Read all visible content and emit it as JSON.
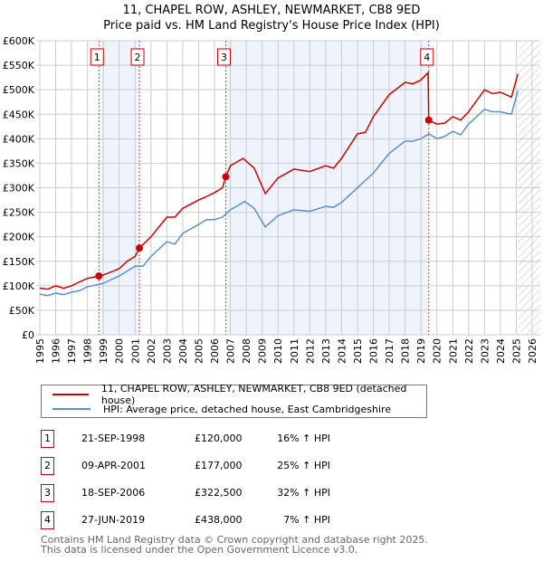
{
  "chart_data": {
    "type": "line",
    "title": "11, CHAPEL ROW, ASHLEY, NEWMARKET, CB8 9ED",
    "subtitle": "Price paid vs. HM Land Registry's House Price Index (HPI)",
    "xlim": [
      1995,
      2026
    ],
    "ylim": [
      0,
      600000
    ],
    "x_ticks": [
      "1995",
      "1996",
      "1997",
      "1998",
      "1999",
      "2000",
      "2001",
      "2002",
      "2003",
      "2004",
      "2005",
      "2006",
      "2007",
      "2008",
      "2009",
      "2010",
      "2011",
      "2012",
      "2013",
      "2014",
      "2015",
      "2016",
      "2017",
      "2018",
      "2019",
      "2020",
      "2021",
      "2022",
      "2023",
      "2024",
      "2025",
      "2026"
    ],
    "y_ticks": [
      {
        "v": 0,
        "l": "£0"
      },
      {
        "v": 50000,
        "l": "£50K"
      },
      {
        "v": 100000,
        "l": "£100K"
      },
      {
        "v": 150000,
        "l": "£150K"
      },
      {
        "v": 200000,
        "l": "£200K"
      },
      {
        "v": 250000,
        "l": "£250K"
      },
      {
        "v": 300000,
        "l": "£300K"
      },
      {
        "v": 350000,
        "l": "£350K"
      },
      {
        "v": 400000,
        "l": "£400K"
      },
      {
        "v": 450000,
        "l": "£450K"
      },
      {
        "v": 500000,
        "l": "£500K"
      },
      {
        "v": 550000,
        "l": "£550K"
      },
      {
        "v": 600000,
        "l": "£600K"
      }
    ],
    "grid": true,
    "shaded_ranges": [
      [
        1998.72,
        2001.27
      ],
      [
        2006.71,
        2019.49
      ]
    ],
    "future_hatch_from": 2025.1,
    "series": [
      {
        "name": "11, CHAPEL ROW, ASHLEY, NEWMARKET, CB8 9ED (detached house)",
        "color": "#cc0000",
        "x": [
          1995,
          1995.5,
          1996,
          1996.5,
          1997,
          1997.5,
          1998,
          1998.72,
          1999,
          2000,
          2000.5,
          2001,
          2001.27,
          2002,
          2003,
          2003.5,
          2004,
          2005,
          2005.5,
          2006,
          2006.5,
          2006.71,
          2007,
          2007.8,
          2008.5,
          2009.2,
          2010,
          2011,
          2012,
          2013,
          2013.5,
          2014,
          2015,
          2015.5,
          2016,
          2017,
          2018,
          2018.5,
          2019,
          2019.45,
          2019.49,
          2020,
          2020.5,
          2021,
          2021.5,
          2022,
          2023,
          2023.5,
          2024,
          2024.7,
          2025.1
        ],
        "y": [
          95000,
          93000,
          100000,
          95000,
          100000,
          108000,
          115000,
          120000,
          122000,
          135000,
          150000,
          160000,
          177000,
          200000,
          240000,
          240000,
          258000,
          275000,
          282000,
          290000,
          300000,
          322500,
          345000,
          360000,
          340000,
          288000,
          320000,
          338000,
          333000,
          345000,
          340000,
          360000,
          410000,
          413000,
          445000,
          490000,
          515000,
          512000,
          520000,
          535000,
          438000,
          430000,
          432000,
          445000,
          438000,
          455000,
          500000,
          492000,
          495000,
          485000,
          532000
        ]
      },
      {
        "name": "HPI: Average price, detached house, East Cambridgeshire",
        "color": "#5b8fd0",
        "x": [
          1995,
          1995.5,
          1996,
          1996.5,
          1997,
          1997.5,
          1998,
          1999,
          2000,
          2000.5,
          2001,
          2001.5,
          2002,
          2003,
          2003.5,
          2004,
          2005,
          2005.5,
          2006,
          2006.5,
          2007,
          2007.9,
          2008.5,
          2009.2,
          2010,
          2011,
          2012,
          2013,
          2013.5,
          2014,
          2015,
          2015.5,
          2016,
          2017,
          2018,
          2018.5,
          2019,
          2019.5,
          2020,
          2020.5,
          2021,
          2021.5,
          2022,
          2023,
          2023.5,
          2024,
          2024.7,
          2025.1
        ],
        "y": [
          83000,
          80000,
          85000,
          82000,
          87000,
          90000,
          98000,
          105000,
          120000,
          130000,
          140000,
          140000,
          160000,
          190000,
          185000,
          207000,
          225000,
          235000,
          235000,
          240000,
          255000,
          272000,
          258000,
          220000,
          243000,
          255000,
          252000,
          262000,
          260000,
          270000,
          300000,
          315000,
          330000,
          370000,
          395000,
          395000,
          400000,
          410000,
          400000,
          405000,
          415000,
          408000,
          430000,
          460000,
          455000,
          455000,
          450000,
          498000
        ]
      }
    ],
    "sales": [
      {
        "n": "1",
        "x": 1998.72,
        "y": 120000
      },
      {
        "n": "2",
        "x": 2001.27,
        "y": 177000
      },
      {
        "n": "3",
        "x": 2006.71,
        "y": 322500
      },
      {
        "n": "4",
        "x": 2019.49,
        "y": 438000
      }
    ]
  },
  "legend": {
    "property": "11, CHAPEL ROW, ASHLEY, NEWMARKET, CB8 9ED (detached house)",
    "hpi": "HPI: Average price, detached house, East Cambridgeshire"
  },
  "transactions": [
    {
      "n": "1",
      "date": "21-SEP-1998",
      "price": "£120,000",
      "hpi": "16% ↑ HPI"
    },
    {
      "n": "2",
      "date": "09-APR-2001",
      "price": "£177,000",
      "hpi": "25% ↑ HPI"
    },
    {
      "n": "3",
      "date": "18-SEP-2006",
      "price": "£322,500",
      "hpi": "32% ↑ HPI"
    },
    {
      "n": "4",
      "date": "27-JUN-2019",
      "price": "£438,000",
      "hpi": "7% ↑ HPI"
    }
  ],
  "footer": {
    "line1": "Contains HM Land Registry data © Crown copyright and database right 2025.",
    "line2": "This data is licensed under the Open Government Licence v3.0."
  }
}
